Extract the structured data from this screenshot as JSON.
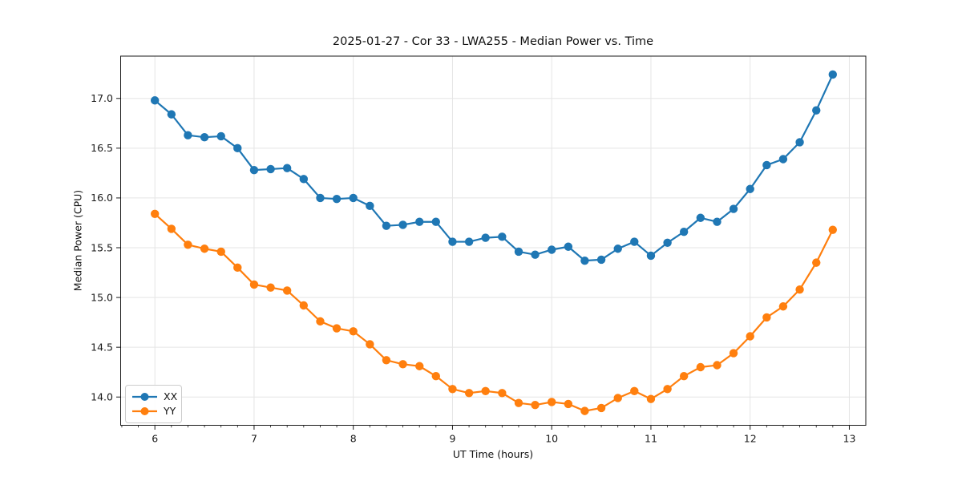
{
  "chart_data": {
    "type": "line",
    "title": "2025-01-27 - Cor 33 - LWA255 - Median Power vs. Time",
    "xlabel": "UT Time (hours)",
    "ylabel": "Median Power (CPU)",
    "legend_position": "lower left",
    "grid": true,
    "marker": "circle",
    "xlim": [
      5.655,
      13.166
    ],
    "ylim": [
      13.716,
      17.425
    ],
    "x_ticks": [
      6,
      7,
      8,
      9,
      10,
      11,
      12,
      13
    ],
    "x_minor_step_hours": 0.16667,
    "y_ticks": [
      14.0,
      14.5,
      15.0,
      15.5,
      16.0,
      16.5,
      17.0
    ],
    "y_tick_labels": [
      "14.0",
      "14.5",
      "15.0",
      "15.5",
      "16.0",
      "16.5",
      "17.0"
    ],
    "x": [
      6.0,
      6.167,
      6.333,
      6.5,
      6.667,
      6.833,
      7.0,
      7.167,
      7.333,
      7.5,
      7.667,
      7.833,
      8.0,
      8.167,
      8.333,
      8.5,
      8.667,
      8.833,
      9.0,
      9.167,
      9.333,
      9.5,
      9.667,
      9.833,
      10.0,
      10.167,
      10.333,
      10.5,
      10.667,
      10.833,
      11.0,
      11.167,
      11.333,
      11.5,
      11.667,
      11.833,
      12.0,
      12.167,
      12.333,
      12.5,
      12.667,
      12.833
    ],
    "series": [
      {
        "name": "XX",
        "color": "#1f77b4",
        "values": [
          16.98,
          16.84,
          16.63,
          16.61,
          16.62,
          16.5,
          16.28,
          16.29,
          16.3,
          16.19,
          16.0,
          15.99,
          16.0,
          15.92,
          15.72,
          15.73,
          15.76,
          15.76,
          15.56,
          15.56,
          15.6,
          15.61,
          15.46,
          15.43,
          15.48,
          15.51,
          15.37,
          15.38,
          15.49,
          15.56,
          15.42,
          15.55,
          15.66,
          15.8,
          15.76,
          15.89,
          16.09,
          16.33,
          16.39,
          16.56,
          16.88,
          17.24
        ]
      },
      {
        "name": "YY",
        "color": "#ff7f0e",
        "values": [
          15.84,
          15.69,
          15.53,
          15.49,
          15.46,
          15.3,
          15.13,
          15.1,
          15.07,
          14.92,
          14.76,
          14.69,
          14.66,
          14.53,
          14.37,
          14.33,
          14.31,
          14.21,
          14.08,
          14.04,
          14.06,
          14.04,
          13.94,
          13.92,
          13.95,
          13.93,
          13.86,
          13.89,
          13.99,
          14.06,
          13.98,
          14.08,
          14.21,
          14.3,
          14.32,
          14.44,
          14.61,
          14.8,
          14.91,
          15.08,
          15.35,
          15.68
        ]
      }
    ],
    "style": {
      "grid_color": "#e5e5e5",
      "spine_color": "#1a1a1a",
      "tick_color": "#1a1a1a",
      "background": "#ffffff"
    }
  }
}
